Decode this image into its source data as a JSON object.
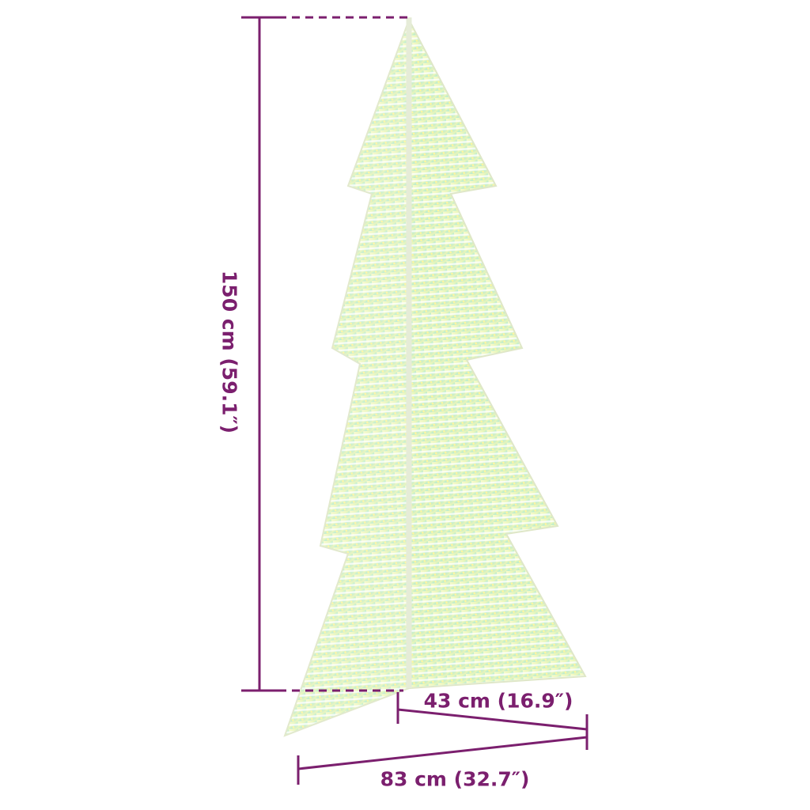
{
  "dimensions": {
    "height": "150 cm (59.1″)",
    "depth": "43 cm (16.9″)",
    "width": "83 cm (32.7″)"
  },
  "colors": {
    "dimension_line": "#7b1f6e",
    "tree_light": "#f4f7b0",
    "tree_accent": "#7fe0b0"
  },
  "product_image": "iridescent-acrylic-led-christmas-tree"
}
